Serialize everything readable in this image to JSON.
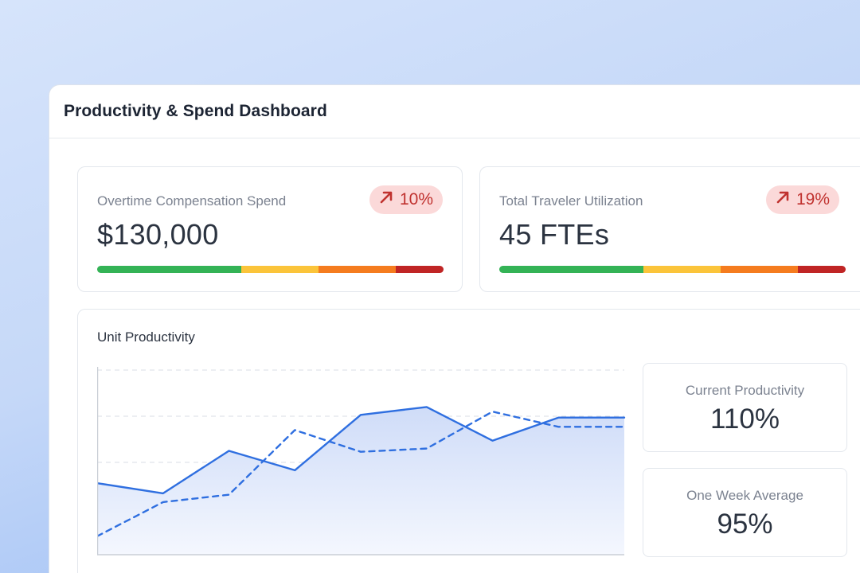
{
  "window": {
    "title": "Productivity & Spend Dashboard"
  },
  "kpis": [
    {
      "label": "Overtime Compensation Spend",
      "value": "$130,000",
      "change": "10%",
      "change_icon": "arrow-up-right-icon",
      "change_color": "#c0322f"
    },
    {
      "label": "Total Traveler Utilization",
      "value": "45 FTEs",
      "change": "19%",
      "change_icon": "arrow-up-right-icon",
      "change_color": "#c0322f"
    }
  ],
  "status_bar_colors": [
    "#34b356",
    "#fbc43a",
    "#f57c1f",
    "#c02525"
  ],
  "unit_productivity": {
    "title": "Unit Productivity",
    "current": {
      "label": "Current Productivity",
      "value": "110%"
    },
    "week_avg": {
      "label": "One Week Average",
      "value": "95%"
    }
  },
  "chart_data": {
    "type": "line",
    "x": [
      1,
      2,
      3,
      4,
      5,
      6,
      7,
      8,
      9
    ],
    "ylim": [
      0,
      4
    ],
    "grid": "horizontal-dashed",
    "series": [
      {
        "style": "solid",
        "fill": "area",
        "color": "#2f6fe0",
        "values": [
          1.55,
          1.33,
          2.25,
          1.83,
          3.03,
          3.2,
          2.47,
          2.97,
          2.97
        ]
      },
      {
        "style": "dashed",
        "color": "#2f6fe0",
        "values": [
          0.4,
          1.14,
          1.3,
          2.7,
          2.23,
          2.3,
          3.1,
          2.77,
          2.77
        ]
      }
    ]
  }
}
